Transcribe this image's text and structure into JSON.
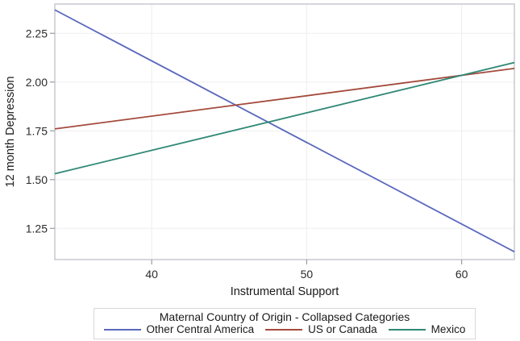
{
  "chart_data": {
    "type": "line",
    "title": "",
    "xlabel": "Instrumental Support",
    "ylabel": "12 month Depression",
    "xlim": [
      33.75,
      63.4
    ],
    "ylim": [
      1.09,
      2.4
    ],
    "x_ticks": [
      "40",
      "50",
      "60"
    ],
    "y_ticks": [
      "1.25",
      "1.50",
      "1.75",
      "2.00",
      "2.25"
    ],
    "grid": true,
    "legend": {
      "position": "bottom",
      "title": "Maternal Country of Origin - Collapsed Categories"
    },
    "series": [
      {
        "name": "Other Central America",
        "color": "#5a68bc",
        "x": [
          33.75,
          63.4
        ],
        "values": [
          2.37,
          1.13
        ]
      },
      {
        "name": "US or Canada",
        "color": "#a44a3c",
        "x": [
          33.75,
          63.4
        ],
        "values": [
          1.76,
          2.07
        ]
      },
      {
        "name": "Mexico",
        "color": "#2e8875",
        "x": [
          33.75,
          63.4
        ],
        "values": [
          1.53,
          2.1
        ]
      }
    ],
    "colors": {
      "gridline": "#f0f0f0",
      "plot_border": "#c9c9cf",
      "tick": "#9b9ba3",
      "text": "#2b2b2b"
    }
  }
}
